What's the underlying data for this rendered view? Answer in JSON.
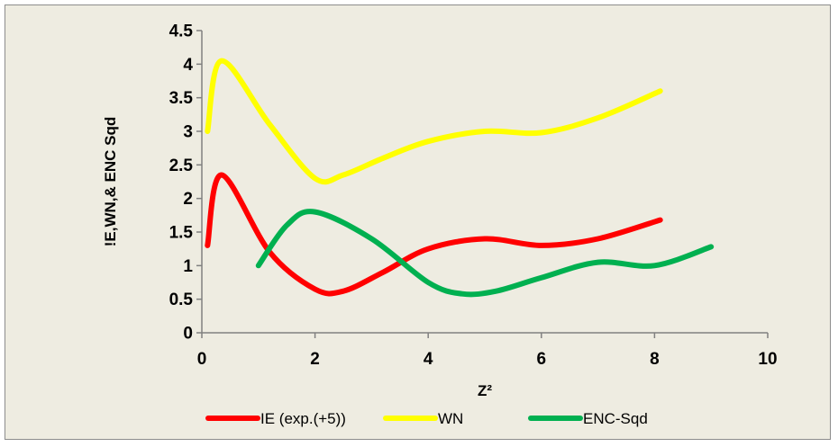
{
  "chart_data": {
    "type": "line",
    "xlabel": "Z²",
    "ylabel": "!E,WN,& ENC Sqd",
    "xlim": [
      0,
      10
    ],
    "ylim": [
      0,
      4.5
    ],
    "x_ticks": [
      "0",
      "2",
      "4",
      "6",
      "8",
      "10"
    ],
    "y_ticks": [
      "0",
      "0.5",
      "1",
      "1.5",
      "2",
      "2.5",
      "3",
      "3.5",
      "4",
      "4.5"
    ],
    "grid": false,
    "legend_position": "bottom",
    "series": [
      {
        "name": "IE (exp.(+5))",
        "color": "#ff0000",
        "x": [
          0.1,
          0.35,
          1.2,
          2.0,
          2.5,
          3.2,
          4.0,
          5.0,
          6.0,
          7.0,
          8.1
        ],
        "y": [
          1.3,
          2.35,
          1.2,
          0.65,
          0.62,
          0.9,
          1.25,
          1.4,
          1.3,
          1.4,
          1.68
        ]
      },
      {
        "name": "WN",
        "color": "#ffff00",
        "x": [
          0.1,
          0.35,
          1.2,
          2.0,
          2.5,
          3.2,
          4.0,
          5.0,
          6.0,
          7.0,
          8.1
        ],
        "y": [
          3.0,
          4.05,
          3.1,
          2.3,
          2.35,
          2.6,
          2.85,
          3.0,
          2.98,
          3.2,
          3.6
        ]
      },
      {
        "name": "ENC-Sqd",
        "color": "#00b050",
        "x": [
          1.0,
          1.5,
          2.0,
          3.0,
          4.0,
          4.6,
          5.2,
          6.0,
          7.0,
          8.0,
          9.0
        ],
        "y": [
          1.0,
          1.6,
          1.8,
          1.4,
          0.75,
          0.58,
          0.62,
          0.82,
          1.05,
          1.0,
          1.28
        ]
      }
    ]
  }
}
